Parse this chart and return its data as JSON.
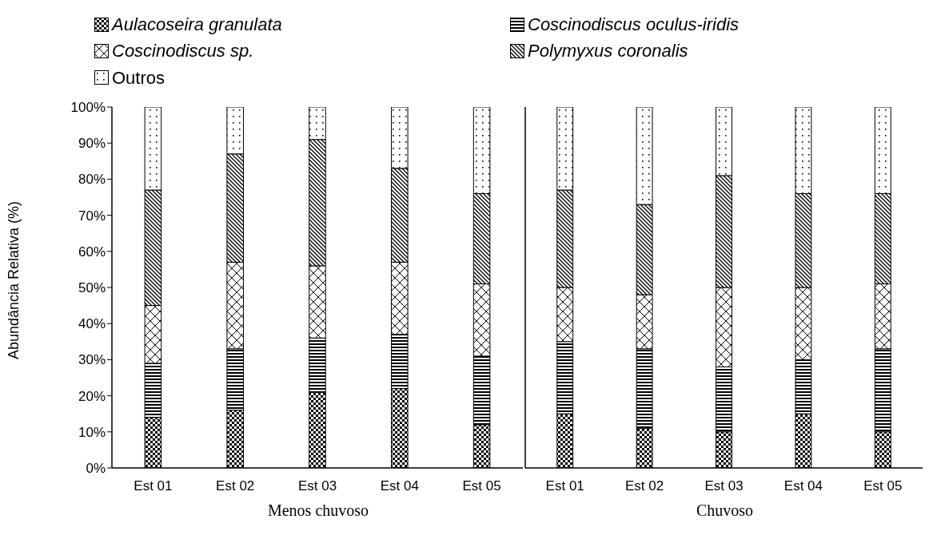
{
  "chart_data": [
    {
      "type": "bar",
      "stacked": true,
      "xlabel": "Menos chuvoso",
      "ylabel": "Abundância Relativa (%)",
      "legend": "top",
      "grid": false,
      "categories": [
        "Est 01",
        "Est 02",
        "Est 03",
        "Est 04",
        "Est 05"
      ],
      "ylim": [
        0,
        100
      ],
      "yticks": [
        {
          "value": 0,
          "label": "0%"
        },
        {
          "value": 10,
          "label": "10%"
        },
        {
          "value": 20,
          "label": "20%"
        },
        {
          "value": 30,
          "label": "30%"
        },
        {
          "value": 40,
          "label": "40%"
        },
        {
          "value": 50,
          "label": "50%"
        },
        {
          "value": 60,
          "label": "60%"
        },
        {
          "value": 70,
          "label": "70%"
        },
        {
          "value": 80,
          "label": "80%"
        },
        {
          "value": 90,
          "label": "90%"
        },
        {
          "value": 100,
          "label": "100%"
        }
      ],
      "series": [
        {
          "name": "Aulacoseira granulata",
          "color": "#000000",
          "values": [
            14,
            16,
            21,
            22,
            12
          ]
        },
        {
          "name": "Coscinodiscus oculus-iridis",
          "color": "#000000",
          "values": [
            15,
            17,
            15,
            15,
            19
          ]
        },
        {
          "name": "Coscinodiscus sp.",
          "color": "#000000",
          "values": [
            16,
            24,
            20,
            20,
            20
          ]
        },
        {
          "name": "Polymyxus coronalis",
          "color": "#000000",
          "values": [
            32,
            30,
            35,
            26,
            25
          ]
        },
        {
          "name": "Outros",
          "color": "#000000",
          "values": [
            23,
            13,
            9,
            17,
            24
          ]
        }
      ]
    },
    {
      "type": "bar",
      "stacked": true,
      "xlabel": "Chuvoso",
      "grid": false,
      "tick_labels": "x",
      "categories": [
        "Est 01",
        "Est 02",
        "Est 03",
        "Est 04",
        "Est 05"
      ],
      "ylim": [
        0,
        100
      ],
      "series": [
        {
          "color": "#000000",
          "values": [
            15,
            11,
            10,
            15,
            10
          ]
        },
        {
          "color": "#000000",
          "values": [
            20,
            22,
            18,
            15,
            23
          ]
        },
        {
          "color": "#000000",
          "values": [
            15,
            15,
            22,
            20,
            18
          ]
        },
        {
          "color": "#000000",
          "values": [
            27,
            25,
            31,
            26,
            25
          ]
        },
        {
          "color": "#000000",
          "values": [
            23,
            27,
            19,
            24,
            24
          ]
        }
      ]
    }
  ]
}
